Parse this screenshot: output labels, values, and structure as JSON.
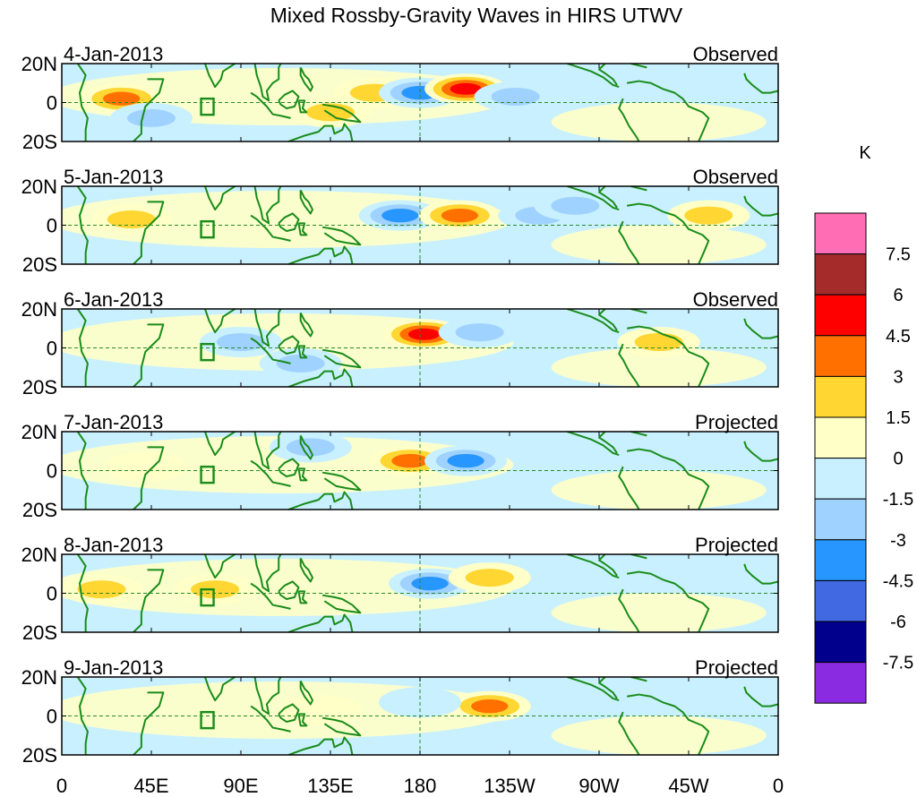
{
  "title": "Mixed Rossby-Gravity Waves in HIRS UTWV",
  "lat_labels": [
    "20N",
    "0",
    "20S"
  ],
  "lon_labels": [
    "0",
    "45E",
    "90E",
    "135E",
    "180",
    "135W",
    "90W",
    "45W",
    "0"
  ],
  "colorbar": {
    "unit": "K",
    "levels": [
      "7.5",
      "6",
      "4.5",
      "3",
      "1.5",
      "0",
      "-1.5",
      "-3",
      "-4.5",
      "-6",
      "-7.5"
    ],
    "colors": [
      "#ff6eb4",
      "#a52a2a",
      "#ff0000",
      "#ff7000",
      "#ffd632",
      "#ffffc8",
      "#c8f0ff",
      "#a0d2ff",
      "#2896ff",
      "#4169e1",
      "#00008c",
      "#8a2be2"
    ]
  },
  "panels": [
    {
      "date": "4-Jan-2013",
      "status": "Observed"
    },
    {
      "date": "5-Jan-2013",
      "status": "Observed"
    },
    {
      "date": "6-Jan-2013",
      "status": "Observed"
    },
    {
      "date": "7-Jan-2013",
      "status": "Projected"
    },
    {
      "date": "8-Jan-2013",
      "status": "Projected"
    },
    {
      "date": "9-Jan-2013",
      "status": "Projected"
    }
  ],
  "chart_data": {
    "type": "heatmap",
    "title": "Mixed Rossby-Gravity Waves in HIRS UTWV",
    "variable": "HIRS UTWV anomaly",
    "unit": "K",
    "x_range_deg": [
      0,
      360
    ],
    "y_range_deg": [
      -20,
      20
    ],
    "anomalies": [
      [
        {
          "lon": 30,
          "lat": 2,
          "v": 4.0
        },
        {
          "lon": 135,
          "lat": -5,
          "v": 2.0
        },
        {
          "lon": 157,
          "lat": 5,
          "v": 1.5
        },
        {
          "lon": 180,
          "lat": 5,
          "v": -3.5
        },
        {
          "lon": 203,
          "lat": 7,
          "v": 4.5
        },
        {
          "lon": 228,
          "lat": 3,
          "v": -1.5
        },
        {
          "lon": 45,
          "lat": -8,
          "v": -1.5
        }
      ],
      [
        {
          "lon": 35,
          "lat": 3,
          "v": 2.5
        },
        {
          "lon": 170,
          "lat": 5,
          "v": -3.5
        },
        {
          "lon": 200,
          "lat": 5,
          "v": 4.0
        },
        {
          "lon": 240,
          "lat": 5,
          "v": -1.5
        },
        {
          "lon": 258,
          "lat": 10,
          "v": -1.5
        },
        {
          "lon": 325,
          "lat": 5,
          "v": 1.5
        }
      ],
      [
        {
          "lon": 120,
          "lat": -8,
          "v": -2.0
        },
        {
          "lon": 90,
          "lat": 3,
          "v": -1.5
        },
        {
          "lon": 182,
          "lat": 7,
          "v": 4.5
        },
        {
          "lon": 210,
          "lat": 8,
          "v": -1.5
        },
        {
          "lon": 300,
          "lat": 3,
          "v": 1.5
        }
      ],
      [
        {
          "lon": 175,
          "lat": 5,
          "v": 4.0
        },
        {
          "lon": 203,
          "lat": 5,
          "v": -3.5
        },
        {
          "lon": 42,
          "lat": 2,
          "v": 1.0
        },
        {
          "lon": 125,
          "lat": 12,
          "v": -1.5
        }
      ],
      [
        {
          "lon": 20,
          "lat": 2,
          "v": 1.5
        },
        {
          "lon": 77,
          "lat": 2,
          "v": 2.0
        },
        {
          "lon": 185,
          "lat": 5,
          "v": -3.5
        },
        {
          "lon": 215,
          "lat": 8,
          "v": 2.5
        }
      ],
      [
        {
          "lon": 215,
          "lat": 5,
          "v": 3.0
        },
        {
          "lon": 180,
          "lat": 7,
          "v": -1.0
        },
        {
          "lon": 130,
          "lat": 3,
          "v": 1.0
        }
      ]
    ]
  }
}
